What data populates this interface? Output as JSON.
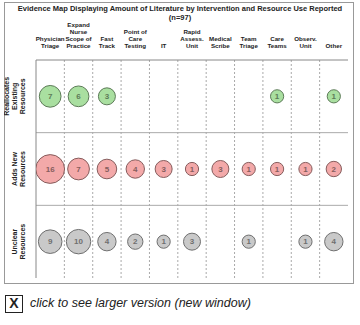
{
  "chart_data": {
    "type": "bubble",
    "title": "Evidence Map Displaying Amount of Literature by Intervention and Resource Use Reported (n=97)",
    "categories": [
      "Physician Triage",
      "Expand Nurse Scope of Practice",
      "Fast Track",
      "Point of Care Testing",
      "IT",
      "Rapid Assess. Unit",
      "Medical Scribe",
      "Team Triage",
      "Care Teams",
      "Observ. Unit",
      "Other"
    ],
    "series": [
      {
        "name": "Reallocates Existing Resources",
        "color": "#a9dfa0",
        "values": [
          7,
          6,
          3,
          null,
          null,
          null,
          null,
          null,
          1,
          null,
          1
        ]
      },
      {
        "name": "Adds New Resources",
        "color": "#f3a9a9",
        "values": [
          16,
          7,
          5,
          4,
          3,
          1,
          3,
          1,
          1,
          1,
          2
        ]
      },
      {
        "name": "Unclear Resources",
        "color": "#c9c9c9",
        "values": [
          9,
          10,
          4,
          2,
          1,
          3,
          null,
          1,
          null,
          1,
          4
        ]
      }
    ],
    "data_labels": true,
    "grid": true
  },
  "footer": {
    "icon": "X",
    "text": "click to see larger version (new window)"
  }
}
